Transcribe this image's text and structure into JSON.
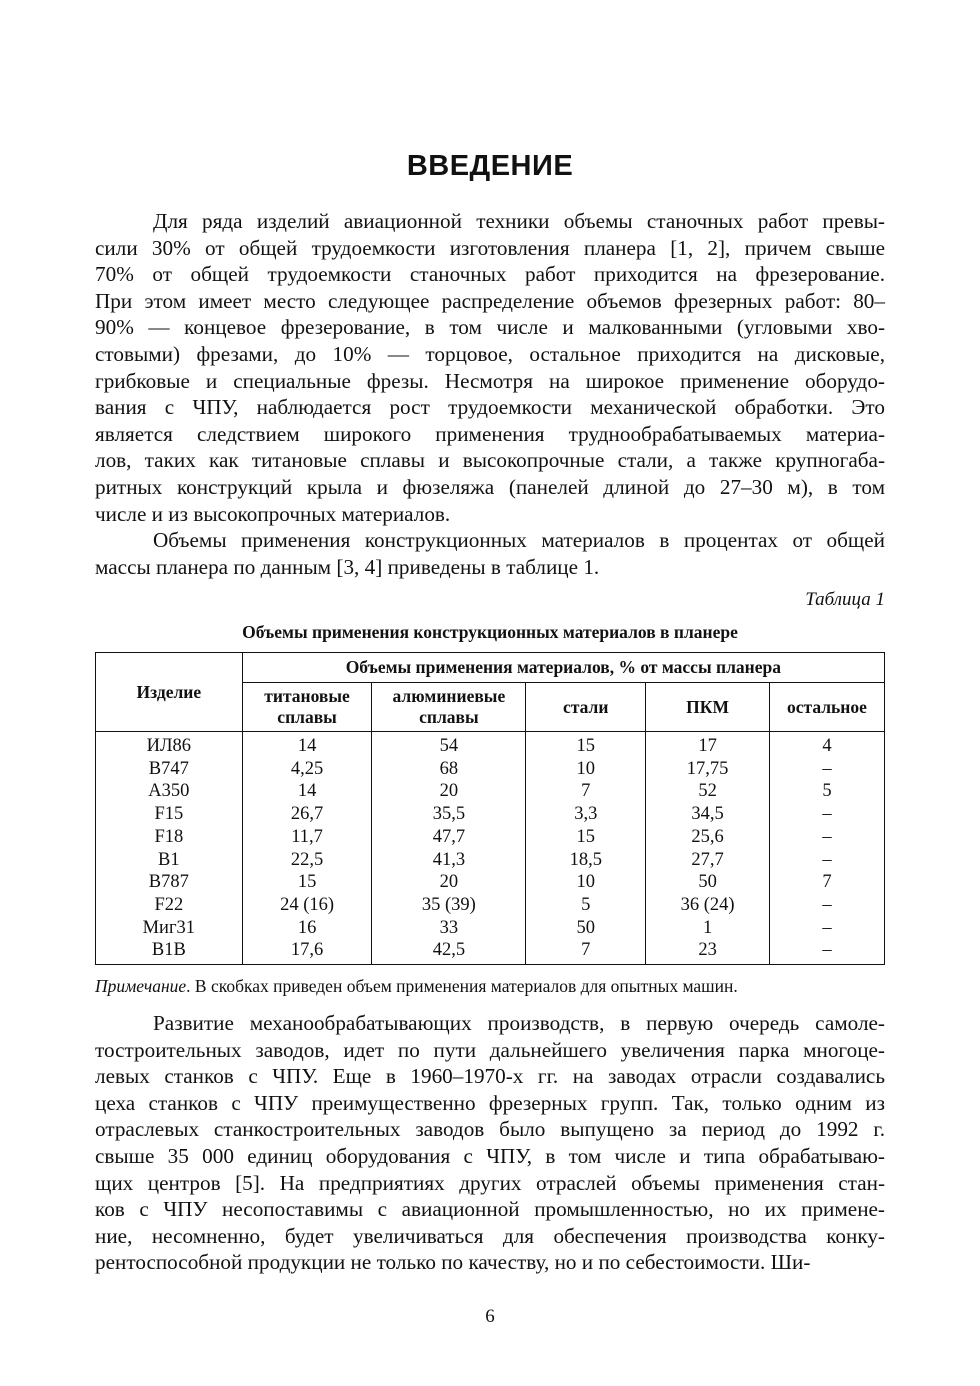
{
  "heading": "ВВЕДЕНИЕ",
  "paragraph1": [
    "Для ряда изделий авиационной техники объемы станочных работ превы-",
    "сили 30% от общей трудоемкости изготовления планера [1, 2], причем свыше",
    "70% от общей трудоемкости станочных работ приходится на фрезерование.",
    "При этом имеет место следующее распределение объемов фрезерных работ: 80–",
    "90% — концевое фрезерование, в том числе и малкованными (угловыми хво-",
    "стовыми) фрезами, до 10% — торцовое, остальное приходится на дисковые,",
    "грибковые и специальные фрезы. Несмотря на широкое применение оборудо-",
    "вания с ЧПУ, наблюдается рост трудоемкости механической обработки. Это",
    "является следствием широкого применения труднообрабатываемых материа-",
    "лов, таких как титановые сплавы и высокопрочные стали, а также крупногаба-",
    "ритных конструкций крыла и фюзеляжа (панелей длиной до 27–30 м), в том",
    "числе и из высокопрочных материалов."
  ],
  "paragraph2": [
    "Объемы применения конструкционных материалов в процентах от общей",
    "массы планера по данным [3, 4] приведены в таблице 1."
  ],
  "table": {
    "number_label": "Таблица 1",
    "title": "Объемы применения конструкционных материалов в планере",
    "row_header": "Изделие",
    "group_header": "Объемы применения материалов, % от массы планера",
    "columns": [
      [
        "титановые",
        "сплавы"
      ],
      [
        "алюминиевые",
        "сплавы"
      ],
      [
        "стали"
      ],
      [
        "ПКМ"
      ],
      [
        "остальное"
      ]
    ],
    "rows": [
      [
        "ИЛ86",
        "14",
        "54",
        "15",
        "17",
        "4"
      ],
      [
        "B747",
        "4,25",
        "68",
        "10",
        "17,75",
        "–"
      ],
      [
        "A350",
        "14",
        "20",
        "7",
        "52",
        "5"
      ],
      [
        "F15",
        "26,7",
        "35,5",
        "3,3",
        "34,5",
        "–"
      ],
      [
        "F18",
        "11,7",
        "47,7",
        "15",
        "25,6",
        "–"
      ],
      [
        "B1",
        "22,5",
        "41,3",
        "18,5",
        "27,7",
        "–"
      ],
      [
        "B787",
        "15",
        "20",
        "10",
        "50",
        "7"
      ],
      [
        "F22",
        "24 (16)",
        "35 (39)",
        "5",
        "36 (24)",
        "–"
      ],
      [
        "Миг31",
        "16",
        "33",
        "50",
        "1",
        "–"
      ],
      [
        "B1B",
        "17,6",
        "42,5",
        "7",
        "23",
        "–"
      ]
    ],
    "note_label": "Примечание",
    "note_text": ". В скобках приведен объем применения материалов для опытных машин."
  },
  "paragraph3": [
    "Развитие механообрабатывающих производств, в первую очередь самоле-",
    "тостроительных заводов, идет по пути дальнейшего увеличения парка многоце-",
    "левых станков с ЧПУ. Еще в 1960–1970-х гг. на заводах отрасли создавались",
    "цеха станков с ЧПУ преимущественно фрезерных групп. Так, только одним из",
    "отраслевых станкостроительных заводов было выпущено за период до 1992 г.",
    "свыше 35 000 единиц оборудования с ЧПУ, в том числе и типа обрабатываю-",
    "щих центров [5]. На предприятиях других отраслей объемы применения стан-",
    "ков с ЧПУ несопоставимы с авиационной промышленностью, но их примене-",
    "ние, несомненно, будет увеличиваться для обеспечения производства конку-",
    "рентоспособной продукции не только по качеству, но и по себестоимости. Ши-"
  ],
  "page_number": "6"
}
